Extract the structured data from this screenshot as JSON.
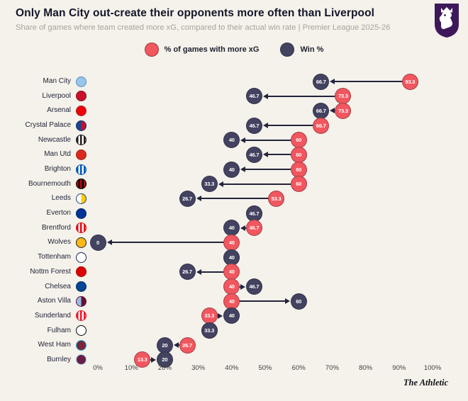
{
  "page": {
    "title": "Only Man City out-create their opponents more often than Liverpool",
    "subtitle": "Share of games where team created more xG, compared to their actual win rate | Premier League 2025-26",
    "footer": "The Athletic"
  },
  "colors": {
    "background": "#F4F2EA",
    "xg_circle": "#F2565E",
    "win_circle": "#434260",
    "arrow": "#23233B",
    "logo_purple": "#3D195B"
  },
  "chart_data": {
    "type": "dumbbell",
    "title": "Only Man City out-create their opponents more often than Liverpool",
    "subtitle": "Share of games where team created more xG, compared to their actual win rate | Premier League 2025-26",
    "legend": [
      {
        "label": "% of games with more xG",
        "key": "xg"
      },
      {
        "label": "Win %",
        "key": "win"
      }
    ],
    "x_axis": {
      "min": 0,
      "max": 100,
      "tick_labels": [
        "0%",
        "10%",
        "20%",
        "30%",
        "40%",
        "50%",
        "60%",
        "70%",
        "80%",
        "90%",
        "100%"
      ],
      "tick_values": [
        0,
        10,
        20,
        30,
        40,
        50,
        60,
        70,
        80,
        90,
        100
      ]
    },
    "teams": [
      {
        "name": "Man City",
        "xg": 93.3,
        "win": 66.7,
        "badge": {
          "pattern": "solid",
          "colors": [
            "#98C5E9"
          ],
          "border": "#5a8fc0"
        }
      },
      {
        "name": "Liverpool",
        "xg": 73.3,
        "win": 46.7,
        "badge": {
          "pattern": "solid",
          "colors": [
            "#C8102E"
          ],
          "border": "#8d0b20"
        }
      },
      {
        "name": "Arsenal",
        "xg": 73.3,
        "win": 66.7,
        "badge": {
          "pattern": "solid",
          "colors": [
            "#EF0107"
          ],
          "border": "#9e2b2b"
        }
      },
      {
        "name": "Crystal Palace",
        "xg": 66.7,
        "win": 46.7,
        "badge": {
          "pattern": "half",
          "colors": [
            "#1B458F",
            "#C4122E"
          ],
          "border": "#14306b"
        }
      },
      {
        "name": "Newcastle",
        "xg": 60,
        "win": 40,
        "badge": {
          "pattern": "stripes",
          "colors": [
            "#241F20",
            "#FFFFFF"
          ],
          "border": "#241F20"
        }
      },
      {
        "name": "Man Utd",
        "xg": 60,
        "win": 46.7,
        "badge": {
          "pattern": "solid",
          "colors": [
            "#DA291C"
          ],
          "border": "#a81f15"
        }
      },
      {
        "name": "Brighton",
        "xg": 60,
        "win": 40,
        "badge": {
          "pattern": "stripes",
          "colors": [
            "#0057B8",
            "#FFFFFF"
          ],
          "border": "#0057B8"
        }
      },
      {
        "name": "Bournemouth",
        "xg": 60,
        "win": 33.3,
        "badge": {
          "pattern": "stripes",
          "colors": [
            "#B50E12",
            "#000000"
          ],
          "border": "#000000"
        }
      },
      {
        "name": "Leeds",
        "xg": 53.3,
        "win": 26.7,
        "badge": {
          "pattern": "half",
          "colors": [
            "#FFFFFF",
            "#FFCD00"
          ],
          "border": "#1D428A"
        }
      },
      {
        "name": "Everton",
        "xg": 46.7,
        "win": 46.7,
        "badge": {
          "pattern": "solid",
          "colors": [
            "#003399"
          ],
          "border": "#002266"
        }
      },
      {
        "name": "Brentford",
        "xg": 46.7,
        "win": 40,
        "badge": {
          "pattern": "stripes",
          "colors": [
            "#E30613",
            "#FFFFFF"
          ],
          "border": "#E30613"
        }
      },
      {
        "name": "Wolves",
        "xg": 40,
        "win": 0,
        "badge": {
          "pattern": "solid",
          "colors": [
            "#FDB913"
          ],
          "border": "#231F20"
        }
      },
      {
        "name": "Tottenham",
        "xg": 40,
        "win": 40,
        "badge": {
          "pattern": "solid",
          "colors": [
            "#FFFFFF"
          ],
          "border": "#132257"
        }
      },
      {
        "name": "Nottm Forest",
        "xg": 40,
        "win": 26.7,
        "badge": {
          "pattern": "solid",
          "colors": [
            "#DD0000"
          ],
          "border": "#a30000"
        }
      },
      {
        "name": "Chelsea",
        "xg": 40,
        "win": 46.7,
        "badge": {
          "pattern": "solid",
          "colors": [
            "#034694"
          ],
          "border": "#022f63"
        }
      },
      {
        "name": "Aston Villa",
        "xg": 40,
        "win": 60,
        "badge": {
          "pattern": "half",
          "colors": [
            "#95BFE5",
            "#670E36"
          ],
          "border": "#670E36"
        }
      },
      {
        "name": "Sunderland",
        "xg": 33.3,
        "win": 40,
        "badge": {
          "pattern": "stripes",
          "colors": [
            "#EB172B",
            "#FFFFFF"
          ],
          "border": "#EB172B"
        }
      },
      {
        "name": "Fulham",
        "xg": 33.3,
        "win": 33.3,
        "badge": {
          "pattern": "solid",
          "colors": [
            "#FFFFFF"
          ],
          "border": "#000000"
        }
      },
      {
        "name": "West Ham",
        "xg": 26.7,
        "win": 20,
        "badge": {
          "pattern": "solid",
          "colors": [
            "#7A263A"
          ],
          "border": "#1BB1E7"
        }
      },
      {
        "name": "Burnley",
        "xg": 13.3,
        "win": 20,
        "badge": {
          "pattern": "solid",
          "colors": [
            "#6C1D45"
          ],
          "border": "#99D6EA"
        }
      }
    ]
  }
}
